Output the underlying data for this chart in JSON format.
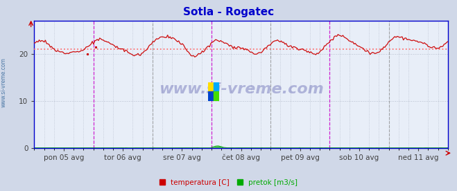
{
  "title": "Sotla - Rogatec",
  "title_color": "#0000cc",
  "background_color": "#d0d8e8",
  "plot_bg_color": "#e8eef8",
  "grid_color": "#b0b8c8",
  "ylim": [
    0,
    27
  ],
  "yticks": [
    0,
    10,
    20
  ],
  "xlabel_color": "#404040",
  "axis_color": "#0000cc",
  "tick_labels": [
    "pon 05 avg",
    "tor 06 avg",
    "sre 07 avg",
    "čet 08 avg",
    "pet 09 avg",
    "sob 10 avg",
    "ned 11 avg"
  ],
  "avg_line_value": 21.0,
  "avg_line_color": "#ff6666",
  "temp_color": "#cc0000",
  "flow_color": "#00aa00",
  "watermark_text": "www.si-vreme.com",
  "watermark_color": "#1a1a8c",
  "watermark_alpha": 0.28,
  "sidebar_text": "www.si-vreme.com",
  "sidebar_color": "#336699",
  "vline_magenta": "#cc00cc",
  "vline_gray": "#888888",
  "n_points": 336,
  "temp_mean": 21.0,
  "temp_amplitude": 2.0,
  "flow_base": 0.03
}
